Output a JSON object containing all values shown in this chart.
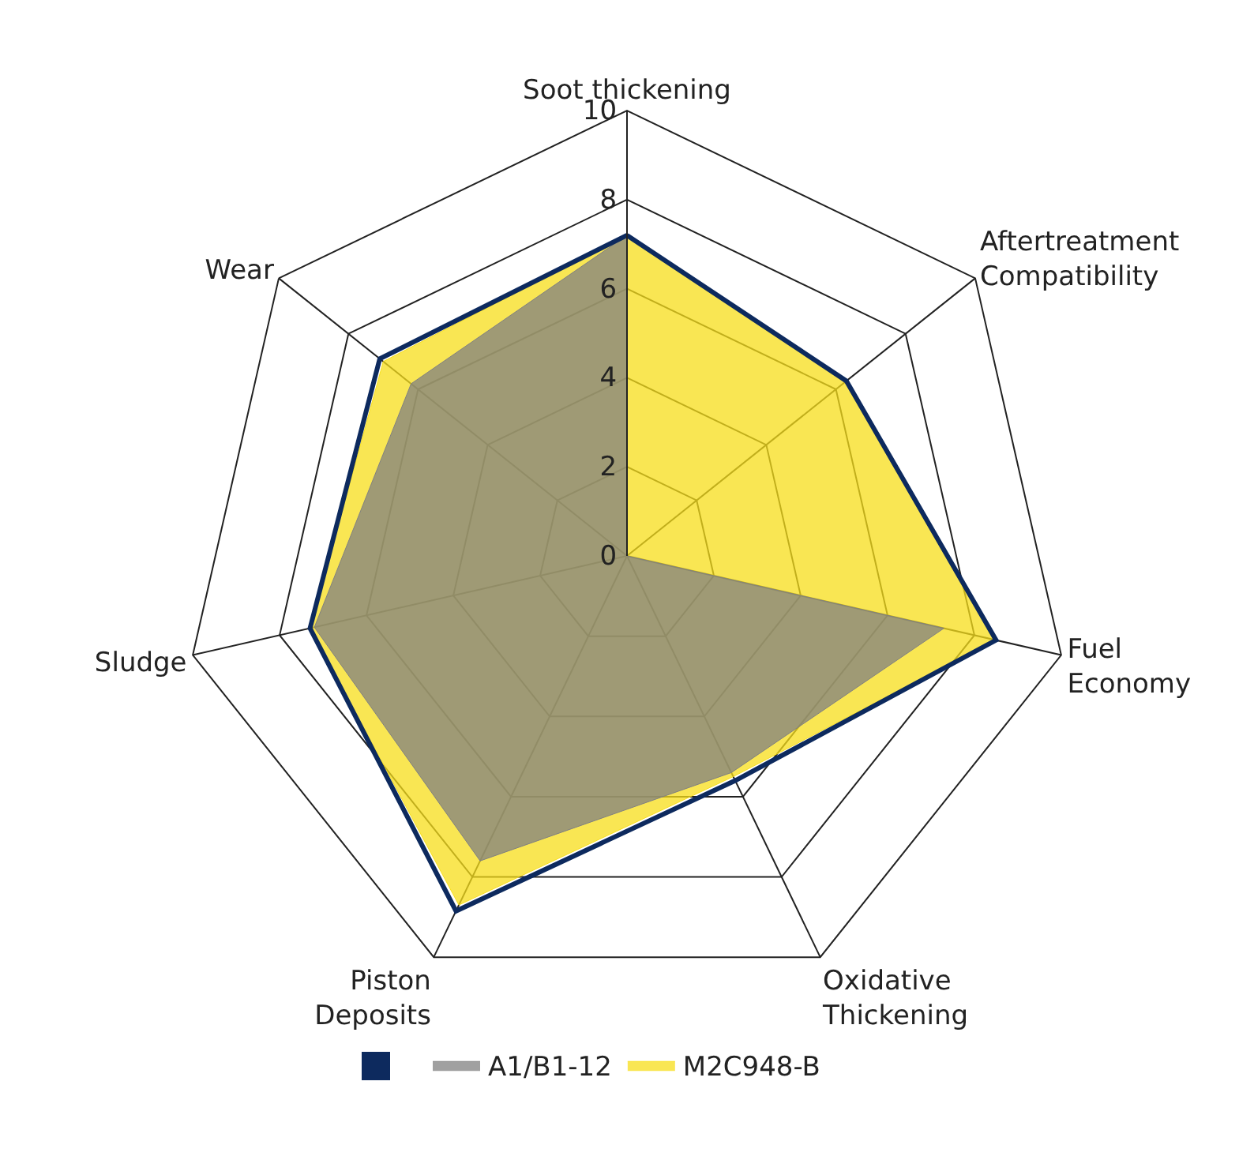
{
  "chart_data": {
    "type": "radar",
    "categories": [
      "Soot thickening",
      "Aftertreatment Compatibility",
      "Fuel Economy",
      "Oxidative Thickening",
      "Piston Deposits",
      "Sludge",
      "Wear"
    ],
    "series": [
      {
        "name": "M2C948-B",
        "color": "#f7de1a",
        "values": [
          7.2,
          6.3,
          8.5,
          5.5,
          8.7,
          7.3,
          7.0
        ]
      },
      {
        "name": "A1/B1-12",
        "color": "#808080",
        "values": [
          7.2,
          0,
          7.3,
          5.4,
          7.6,
          7.2,
          6.2
        ]
      },
      {
        "color": "#0d2a5e",
        "values": [
          7.2,
          6.3,
          8.5,
          5.6,
          8.85,
          7.3,
          7.1
        ]
      }
    ],
    "ylim": [
      0,
      10
    ],
    "yticks": [
      0,
      2,
      4,
      6,
      8,
      10
    ],
    "grid": true,
    "legend": "bottom"
  }
}
